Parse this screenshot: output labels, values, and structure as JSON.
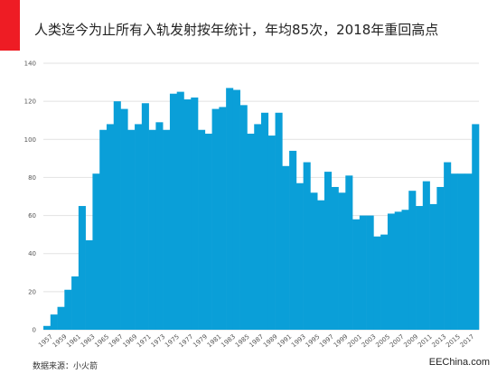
{
  "header": {
    "title": "人类迄今为止所有入轨发射按年统计，年均85次，2018年重回高点"
  },
  "colors": {
    "accent": "#ee1c24",
    "bar": "#0a9fd8",
    "grid": "#e2e2e2"
  },
  "chart_data": {
    "type": "bar",
    "title": "人类迄今为止所有入轨发射按年统计，年均85次，2018年重回高点",
    "xlabel": "",
    "ylabel": "",
    "ylim": [
      0,
      140
    ],
    "yticks": [
      "0",
      "20",
      "40",
      "60",
      "80",
      "100",
      "120",
      "140"
    ],
    "grid": true,
    "categories": [
      "1957",
      "1958",
      "1959",
      "1960",
      "1961",
      "1962",
      "1963",
      "1964",
      "1965",
      "1966",
      "1967",
      "1968",
      "1969",
      "1970",
      "1971",
      "1972",
      "1973",
      "1974",
      "1975",
      "1976",
      "1977",
      "1978",
      "1979",
      "1980",
      "1981",
      "1982",
      "1983",
      "1984",
      "1985",
      "1986",
      "1987",
      "1988",
      "1989",
      "1990",
      "1991",
      "1992",
      "1993",
      "1994",
      "1995",
      "1996",
      "1997",
      "1998",
      "1999",
      "2000",
      "2001",
      "2002",
      "2003",
      "2004",
      "2005",
      "2006",
      "2007",
      "2008",
      "2009",
      "2010",
      "2011",
      "2012",
      "2013",
      "2014",
      "2015",
      "2016",
      "2017",
      "2018"
    ],
    "xtick_labels": [
      "1957",
      "1959",
      "1961",
      "1963",
      "1965",
      "1967",
      "1969",
      "1971",
      "1973",
      "1975",
      "1977",
      "1979",
      "1981",
      "1983",
      "1985",
      "1987",
      "1989",
      "1991",
      "1993",
      "1995",
      "1997",
      "1999",
      "2001",
      "2003",
      "2005",
      "2007",
      "2009",
      "2011",
      "2013",
      "2015",
      "2017"
    ],
    "values": [
      2,
      8,
      12,
      21,
      28,
      65,
      47,
      82,
      105,
      108,
      120,
      116,
      105,
      108,
      119,
      105,
      109,
      105,
      124,
      125,
      121,
      122,
      105,
      103,
      116,
      117,
      127,
      126,
      118,
      103,
      108,
      114,
      102,
      114,
      86,
      94,
      77,
      88,
      72,
      68,
      83,
      75,
      72,
      81,
      58,
      60,
      60,
      49,
      50,
      61,
      62,
      63,
      73,
      65,
      78,
      66,
      75,
      88,
      82,
      82,
      82,
      108
    ]
  },
  "footer": {
    "source": "数据来源：小火箭",
    "watermark": "EEChina.com"
  }
}
